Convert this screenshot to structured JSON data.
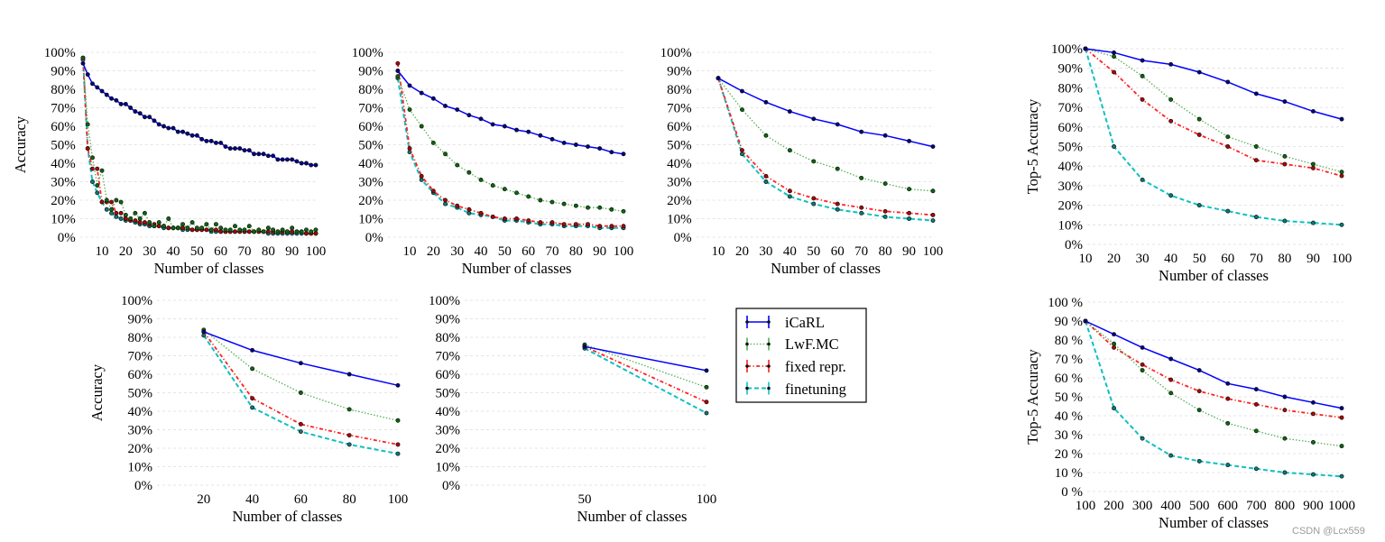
{
  "legend": {
    "placement": "right-middle",
    "entries": [
      "iCaRL",
      "LwF.MC",
      "fixed repr.",
      "finetuning"
    ]
  },
  "series_styles": {
    "iCaRL": {
      "color": "#0000ff",
      "dash": "solid"
    },
    "LwF.MC": {
      "color": "#55b055",
      "marker_color": "#0a6a0a",
      "dash": "dotted"
    },
    "fixed repr.": {
      "color": "#ff2020",
      "marker_color": "#b00000",
      "dash": "dashdot"
    },
    "finetuning": {
      "color": "#10c0c0",
      "marker_color": "#0a7a7a",
      "dash": "dashed"
    }
  },
  "watermark": "CSDN @Lcx559",
  "chart_data": [
    {
      "type": "line",
      "grid": true,
      "xlabel": "Number of classes",
      "ylabel": "Accuracy",
      "xlim": [
        0,
        100
      ],
      "ylim": [
        0,
        100
      ],
      "xticks": [
        10,
        20,
        30,
        40,
        50,
        60,
        70,
        80,
        90,
        100
      ],
      "ytick_labels": [
        "0%",
        "10%",
        "20%",
        "30%",
        "40%",
        "50%",
        "60%",
        "70%",
        "80%",
        "90%",
        "100%"
      ],
      "x": [
        2,
        4,
        6,
        8,
        10,
        12,
        14,
        16,
        18,
        20,
        22,
        24,
        26,
        28,
        30,
        32,
        34,
        36,
        38,
        40,
        42,
        44,
        46,
        48,
        50,
        52,
        54,
        56,
        58,
        60,
        62,
        64,
        66,
        68,
        70,
        72,
        74,
        76,
        78,
        80,
        82,
        84,
        86,
        88,
        90,
        92,
        94,
        96,
        98,
        100
      ],
      "series": [
        {
          "name": "iCaRL",
          "values": [
            94,
            88,
            83,
            81,
            79,
            77,
            75,
            74,
            72,
            72,
            70,
            68,
            67,
            65,
            65,
            63,
            61,
            60,
            59,
            59,
            57,
            57,
            56,
            55,
            55,
            53,
            52,
            52,
            51,
            51,
            49,
            48,
            48,
            48,
            47,
            47,
            45,
            45,
            45,
            44,
            44,
            42,
            42,
            42,
            42,
            41,
            40,
            40,
            39,
            39
          ]
        },
        {
          "name": "LwF.MC",
          "values": [
            97,
            61,
            43,
            28,
            36,
            20,
            15,
            20,
            19,
            12,
            10,
            13,
            10,
            13,
            8,
            6,
            8,
            6,
            10,
            5,
            5,
            7,
            5,
            8,
            5,
            5,
            7,
            4,
            7,
            5,
            4,
            4,
            6,
            4,
            4,
            6,
            3,
            4,
            3,
            5,
            4,
            3,
            4,
            3,
            5,
            3,
            3,
            4,
            3,
            4
          ]
        },
        {
          "name": "fixed repr.",
          "values": [
            97,
            48,
            37,
            37,
            19,
            19,
            19,
            13,
            13,
            10,
            9,
            9,
            8,
            8,
            7,
            7,
            6,
            6,
            5,
            5,
            5,
            5,
            5,
            4,
            4,
            4,
            4,
            4,
            4,
            3,
            3,
            3,
            3,
            3,
            3,
            3,
            3,
            3,
            3,
            3,
            3,
            3,
            3,
            3,
            3,
            3,
            3,
            2,
            2,
            2
          ]
        },
        {
          "name": "finetuning",
          "values": [
            96,
            48,
            30,
            24,
            19,
            15,
            13,
            11,
            10,
            9,
            9,
            8,
            7,
            7,
            6,
            6,
            6,
            5,
            5,
            5,
            5,
            4,
            4,
            4,
            4,
            4,
            4,
            3,
            3,
            3,
            3,
            3,
            3,
            3,
            3,
            3,
            3,
            3,
            3,
            2,
            2,
            2,
            2,
            2,
            2,
            2,
            2,
            2,
            2,
            2
          ]
        }
      ]
    },
    {
      "type": "line",
      "grid": true,
      "xlabel": "Number of classes",
      "ylabel": "",
      "xlim": [
        0,
        100
      ],
      "ylim": [
        0,
        100
      ],
      "xticks": [
        10,
        20,
        30,
        40,
        50,
        60,
        70,
        80,
        90,
        100
      ],
      "ytick_labels": [
        "0%",
        "10%",
        "20%",
        "30%",
        "40%",
        "50%",
        "60%",
        "70%",
        "80%",
        "90%",
        "100%"
      ],
      "x": [
        5,
        10,
        15,
        20,
        25,
        30,
        35,
        40,
        45,
        50,
        55,
        60,
        65,
        70,
        75,
        80,
        85,
        90,
        95,
        100
      ],
      "series": [
        {
          "name": "iCaRL",
          "values": [
            90,
            82,
            78,
            75,
            71,
            69,
            66,
            64,
            61,
            60,
            58,
            57,
            55,
            53,
            51,
            50,
            49,
            48,
            46,
            45
          ]
        },
        {
          "name": "LwF.MC",
          "values": [
            87,
            69,
            60,
            51,
            45,
            39,
            35,
            31,
            28,
            26,
            24,
            22,
            20,
            19,
            18,
            17,
            16,
            16,
            15,
            14
          ]
        },
        {
          "name": "fixed repr.",
          "values": [
            94,
            48,
            33,
            25,
            20,
            17,
            15,
            13,
            11,
            10,
            10,
            9,
            8,
            8,
            7,
            7,
            7,
            6,
            6,
            6
          ]
        },
        {
          "name": "finetuning",
          "values": [
            86,
            46,
            31,
            24,
            18,
            16,
            13,
            12,
            11,
            9,
            9,
            8,
            7,
            7,
            6,
            6,
            6,
            5,
            5,
            5
          ]
        }
      ]
    },
    {
      "type": "line",
      "grid": true,
      "xlabel": "Number of classes",
      "ylabel": "",
      "xlim": [
        0,
        100
      ],
      "ylim": [
        0,
        100
      ],
      "xticks": [
        10,
        20,
        30,
        40,
        50,
        60,
        70,
        80,
        90,
        100
      ],
      "ytick_labels": [
        "0%",
        "10%",
        "20%",
        "30%",
        "40%",
        "50%",
        "60%",
        "70%",
        "80%",
        "90%",
        "100%"
      ],
      "x": [
        10,
        20,
        30,
        40,
        50,
        60,
        70,
        80,
        90,
        100
      ],
      "series": [
        {
          "name": "iCaRL",
          "values": [
            86,
            79,
            73,
            68,
            64,
            61,
            57,
            55,
            52,
            49
          ]
        },
        {
          "name": "LwF.MC",
          "values": [
            86,
            69,
            55,
            47,
            41,
            37,
            32,
            29,
            26,
            25
          ]
        },
        {
          "name": "fixed repr.",
          "values": [
            86,
            47,
            33,
            25,
            21,
            18,
            16,
            14,
            13,
            12
          ]
        },
        {
          "name": "finetuning",
          "values": [
            86,
            45,
            30,
            22,
            18,
            15,
            13,
            11,
            10,
            9
          ]
        }
      ]
    },
    {
      "type": "line",
      "grid": true,
      "xlabel": "Number of classes",
      "ylabel": "Top-5 Accuracy",
      "xlim": [
        10,
        100
      ],
      "ylim": [
        0,
        100
      ],
      "xticks": [
        10,
        20,
        30,
        40,
        50,
        60,
        70,
        80,
        90,
        100
      ],
      "ytick_labels": [
        "0%",
        "10%",
        "20%",
        "30%",
        "40%",
        "50%",
        "60%",
        "70%",
        "80%",
        "90%",
        "100%"
      ],
      "x": [
        10,
        20,
        30,
        40,
        50,
        60,
        70,
        80,
        90,
        100
      ],
      "series": [
        {
          "name": "iCaRL",
          "values": [
            100,
            98,
            94,
            92,
            88,
            83,
            77,
            73,
            68,
            64
          ]
        },
        {
          "name": "LwF.MC",
          "values": [
            100,
            96,
            86,
            74,
            64,
            55,
            50,
            45,
            41,
            37
          ]
        },
        {
          "name": "fixed repr.",
          "values": [
            100,
            88,
            74,
            63,
            56,
            50,
            43,
            41,
            39,
            35
          ]
        },
        {
          "name": "finetuning",
          "values": [
            100,
            50,
            33,
            25,
            20,
            17,
            14,
            12,
            11,
            10
          ]
        }
      ]
    },
    {
      "type": "line",
      "grid": true,
      "xlabel": "Number of classes",
      "ylabel": "Accuracy",
      "xlim": [
        0,
        100
      ],
      "ylim": [
        0,
        100
      ],
      "xticks": [
        20,
        40,
        60,
        80,
        100
      ],
      "ytick_labels": [
        "0%",
        "10%",
        "20%",
        "30%",
        "40%",
        "50%",
        "60%",
        "70%",
        "80%",
        "90%",
        "100%"
      ],
      "x": [
        20,
        40,
        60,
        80,
        100
      ],
      "series": [
        {
          "name": "iCaRL",
          "values": [
            83,
            73,
            66,
            60,
            54
          ]
        },
        {
          "name": "LwF.MC",
          "values": [
            84,
            63,
            50,
            41,
            35
          ]
        },
        {
          "name": "fixed repr.",
          "values": [
            83,
            47,
            33,
            27,
            22
          ]
        },
        {
          "name": "finetuning",
          "values": [
            81,
            42,
            29,
            22,
            17
          ]
        }
      ]
    },
    {
      "type": "line",
      "grid": true,
      "xlabel": "Number of classes",
      "ylabel": "",
      "xlim": [
        0,
        100
      ],
      "ylim": [
        0,
        100
      ],
      "xticks": [
        50,
        100
      ],
      "ytick_labels": [
        "0%",
        "10%",
        "20%",
        "30%",
        "40%",
        "50%",
        "60%",
        "70%",
        "80%",
        "90%",
        "100%"
      ],
      "x": [
        50,
        100
      ],
      "series": [
        {
          "name": "iCaRL",
          "values": [
            75,
            62
          ]
        },
        {
          "name": "LwF.MC",
          "values": [
            76,
            53
          ]
        },
        {
          "name": "fixed repr.",
          "values": [
            75,
            45
          ]
        },
        {
          "name": "finetuning",
          "values": [
            74,
            39
          ]
        }
      ]
    },
    {
      "type": "line",
      "grid": true,
      "xlabel": "Number of classes",
      "ylabel": "Top-5 Accuracy",
      "xlim": [
        100,
        1000
      ],
      "ylim": [
        0,
        100
      ],
      "xticks": [
        100,
        200,
        300,
        400,
        500,
        600,
        700,
        800,
        900,
        1000
      ],
      "ytick_labels": [
        "0 %",
        "10 %",
        "20 %",
        "30 %",
        "40 %",
        "50 %",
        "60 %",
        "70 %",
        "80 %",
        "90 %",
        "100 %"
      ],
      "x": [
        100,
        200,
        300,
        400,
        500,
        600,
        700,
        800,
        900,
        1000
      ],
      "series": [
        {
          "name": "iCaRL",
          "values": [
            90,
            83,
            76,
            70,
            64,
            57,
            54,
            50,
            47,
            44
          ]
        },
        {
          "name": "LwF.MC",
          "values": [
            90,
            78,
            64,
            52,
            43,
            36,
            32,
            28,
            26,
            24
          ]
        },
        {
          "name": "fixed repr.",
          "values": [
            90,
            76,
            67,
            59,
            53,
            49,
            46,
            43,
            41,
            39
          ]
        },
        {
          "name": "finetuning",
          "values": [
            90,
            44,
            28,
            19,
            16,
            14,
            12,
            10,
            9,
            8
          ]
        }
      ]
    }
  ]
}
